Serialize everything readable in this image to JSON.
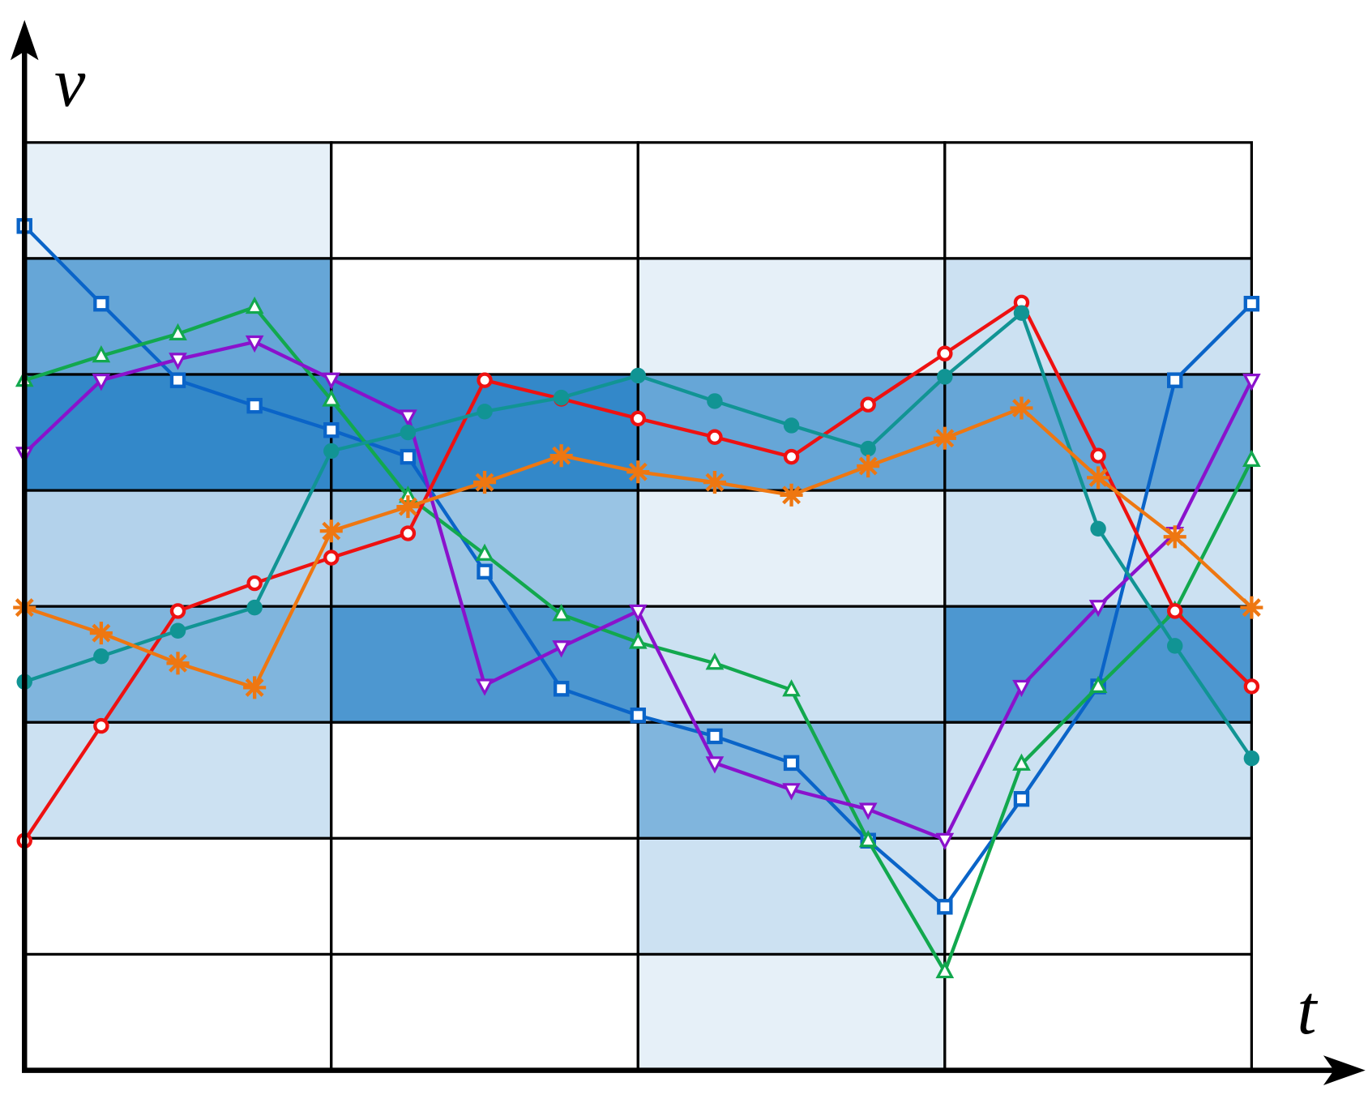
{
  "chart_data": {
    "type": "line",
    "y_label": "v",
    "x_label": "t",
    "ylim": [
      0,
      8
    ],
    "cell_color": "#3388c9",
    "cells": [
      [
        1,
        6,
        8,
        3,
        5,
        2,
        0,
        0
      ],
      [
        0,
        0,
        8,
        4,
        7,
        0,
        0,
        0
      ],
      [
        0,
        1,
        6,
        1,
        2,
        5,
        2,
        1
      ],
      [
        0,
        2,
        6,
        2,
        7,
        2,
        0,
        0
      ]
    ],
    "series": [
      {
        "color": "#0a64c8",
        "marker": "square",
        "values": [
          7.28,
          6.61,
          5.95,
          5.73,
          5.52,
          5.29,
          4.3,
          3.29,
          3.06,
          2.88,
          2.65,
          1.98,
          1.41,
          2.34,
          3.31,
          5.95,
          6.61
        ]
      },
      {
        "color": "#12a84e",
        "marker": "triangle-up",
        "values": [
          5.95,
          6.16,
          6.35,
          6.58,
          5.78,
          4.95,
          4.45,
          3.93,
          3.69,
          3.51,
          3.28,
          1.98,
          0.85,
          2.64,
          3.31,
          3.96,
          5.26
        ]
      },
      {
        "color": "#8a12cc",
        "marker": "triangle-down",
        "values": [
          5.32,
          5.95,
          6.13,
          6.28,
          5.96,
          5.64,
          3.32,
          3.65,
          3.96,
          2.65,
          2.42,
          2.25,
          1.99,
          3.31,
          4.0,
          4.63,
          5.95
        ]
      },
      {
        "color": "#ee1111",
        "marker": "circle",
        "values": [
          1.98,
          2.97,
          3.96,
          4.2,
          4.42,
          4.63,
          5.95,
          5.79,
          5.62,
          5.46,
          5.29,
          5.74,
          6.18,
          6.62,
          5.3,
          3.96,
          3.31
        ]
      },
      {
        "color": "#119494",
        "marker": "dot",
        "values": [
          3.35,
          3.57,
          3.79,
          3.99,
          5.34,
          5.5,
          5.68,
          5.8,
          5.99,
          5.77,
          5.56,
          5.36,
          5.98,
          6.53,
          4.67,
          3.66,
          2.69
        ]
      },
      {
        "color": "#ee7711",
        "marker": "star",
        "values": [
          3.99,
          3.77,
          3.51,
          3.3,
          4.65,
          4.86,
          5.07,
          5.3,
          5.16,
          5.07,
          4.96,
          5.21,
          5.45,
          5.71,
          5.11,
          4.6,
          3.99
        ]
      }
    ]
  }
}
